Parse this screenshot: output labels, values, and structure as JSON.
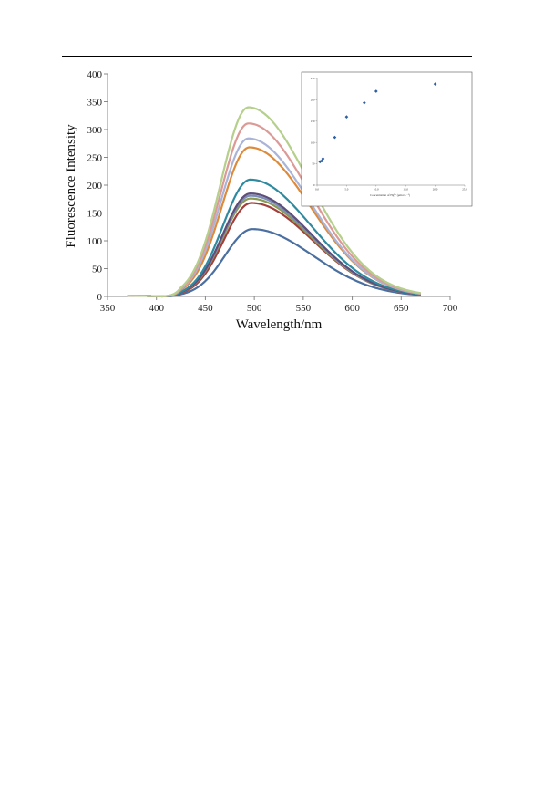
{
  "chart_data": [
    {
      "type": "line",
      "xlabel": "Wavelength/nm",
      "ylabel": "Fluorescence Intensity",
      "xlim": [
        350,
        700
      ],
      "ylim": [
        0,
        400
      ],
      "xticks": [
        "350",
        "400",
        "450",
        "500",
        "550",
        "600",
        "650",
        "700"
      ],
      "yticks": [
        "0",
        "50",
        "100",
        "150",
        "200",
        "250",
        "300",
        "350",
        "400"
      ],
      "x_start": 370,
      "x_end": 670,
      "curve_shape": {
        "onset": 405,
        "peak_x": 495,
        "sigma_left": 28,
        "sigma_right": 62
      },
      "series": [
        {
          "peak": 121,
          "peak_x": 498,
          "tail": 3,
          "color": "#4a6fa0"
        },
        {
          "peak": 168,
          "peak_x": 497,
          "tail": 3,
          "color": "#a33f3b"
        },
        {
          "peak": 176,
          "peak_x": 496,
          "tail": 3,
          "color": "#8a9a55"
        },
        {
          "peak": 181,
          "peak_x": 496,
          "tail": 3,
          "color": "#7a8db8"
        },
        {
          "peak": 185,
          "peak_x": 496,
          "tail": 3,
          "color": "#5d4e7a"
        },
        {
          "peak": 210,
          "peak_x": 496,
          "tail": 4,
          "color": "#2f8aa0"
        },
        {
          "peak": 268,
          "peak_x": 495,
          "tail": 4,
          "color": "#dd8a3a"
        },
        {
          "peak": 284,
          "peak_x": 494,
          "tail": 5,
          "color": "#a9b4d8"
        },
        {
          "peak": 311,
          "peak_x": 494,
          "tail": 5,
          "color": "#dc9a96"
        },
        {
          "peak": 340,
          "peak_x": 494,
          "tail": 6,
          "color": "#b5cf8c"
        }
      ]
    },
    {
      "type": "scatter",
      "xlabel": "Concentration of Hg²⁺ (μmol L⁻¹)",
      "ylabel": "",
      "xlim": [
        0,
        25
      ],
      "ylim": [
        0,
        250
      ],
      "xticks": [
        "0.0",
        "5.0",
        "10.0",
        "15.0",
        "20.0",
        "25.0"
      ],
      "yticks": [
        "0",
        "50",
        "100",
        "150",
        "200",
        "250"
      ],
      "point_color": "#2e5fa0",
      "points": [
        {
          "x": 0.5,
          "y": 55
        },
        {
          "x": 0.8,
          "y": 57
        },
        {
          "x": 1.0,
          "y": 62
        },
        {
          "x": 3.0,
          "y": 112
        },
        {
          "x": 5.0,
          "y": 160
        },
        {
          "x": 8.0,
          "y": 193
        },
        {
          "x": 10.0,
          "y": 220
        },
        {
          "x": 20.0,
          "y": 237
        }
      ]
    }
  ]
}
